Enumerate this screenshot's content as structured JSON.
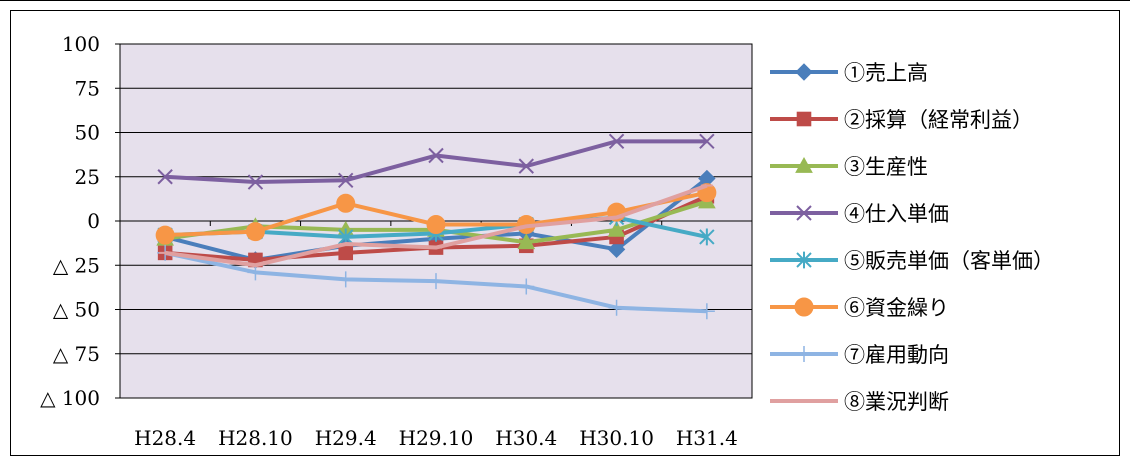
{
  "chart_data": {
    "type": "line",
    "categories": [
      "H28.4",
      "H28.10",
      "H29.4",
      "H29.10",
      "H30.4",
      "H30.10",
      "H31.4"
    ],
    "y_ticks": [
      {
        "value": 100,
        "label": "100"
      },
      {
        "value": 75,
        "label": "75"
      },
      {
        "value": 50,
        "label": "50"
      },
      {
        "value": 25,
        "label": "25"
      },
      {
        "value": 0,
        "label": "0"
      },
      {
        "value": -25,
        "label": "△ 25"
      },
      {
        "value": -50,
        "label": "△ 50"
      },
      {
        "value": -75,
        "label": "△ 75"
      },
      {
        "value": -100,
        "label": "△ 100"
      }
    ],
    "ylim": [
      -100,
      100
    ],
    "grid": true,
    "legend_position": "right",
    "plot_background": "#e6e0ec",
    "series": [
      {
        "name": "①売上高",
        "color": "#4a7ebb",
        "marker": "diamond",
        "values": [
          -9,
          -22,
          -14,
          -10,
          -7,
          -16,
          24
        ]
      },
      {
        "name": "②採算（経常利益）",
        "color": "#be4b48",
        "marker": "square",
        "values": [
          -18,
          -22,
          -18,
          -15,
          -14,
          -9,
          14
        ]
      },
      {
        "name": "③生産性",
        "color": "#98b954",
        "marker": "triangle",
        "values": [
          -10,
          -3,
          -5,
          -5,
          -12,
          -5,
          11
        ]
      },
      {
        "name": "④仕入単価",
        "color": "#7d60a0",
        "marker": "x",
        "values": [
          25,
          22,
          23,
          37,
          31,
          45,
          45
        ]
      },
      {
        "name": "⑤販売単価（客単価）",
        "color": "#46aac5",
        "marker": "star",
        "values": [
          -8,
          -6,
          -9,
          -7,
          -2,
          2,
          -9
        ]
      },
      {
        "name": "⑥資金繰り",
        "color": "#f79646",
        "marker": "circle",
        "values": [
          -8,
          -6,
          10,
          -2,
          -2,
          5,
          16
        ]
      },
      {
        "name": "⑦雇用動向",
        "color": "#8eb4e3",
        "marker": "plus",
        "values": [
          -18,
          -29,
          -33,
          -34,
          -37,
          -49,
          -51
        ]
      },
      {
        "name": "⑧業況判断",
        "color": "#e0a0a0",
        "marker": "dash",
        "values": [
          -18,
          -25,
          -13,
          -15,
          -3,
          2,
          20
        ]
      }
    ]
  }
}
